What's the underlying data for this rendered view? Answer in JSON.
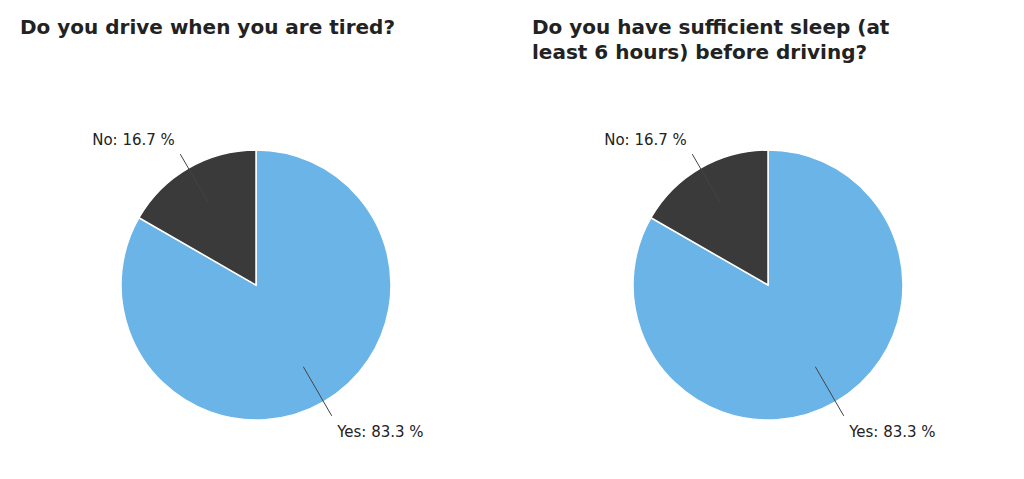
{
  "chart_data": [
    {
      "type": "pie",
      "title": "Do you drive when you are tired?",
      "values": [
        83.3,
        16.7
      ],
      "value_labels": [
        "Yes: 83.3 %",
        "No: 16.7 %"
      ],
      "colors": [
        "#6ab4e8",
        "#3a3a3a"
      ]
    },
    {
      "type": "pie",
      "title": "Do you have sufficient sleep (at\nleast 6 hours) before driving?",
      "values": [
        83.3,
        16.7
      ],
      "value_labels": [
        "Yes: 83.3 %",
        "No: 16.7 %"
      ],
      "colors": [
        "#6ab4e8",
        "#3a3a3a"
      ]
    }
  ]
}
